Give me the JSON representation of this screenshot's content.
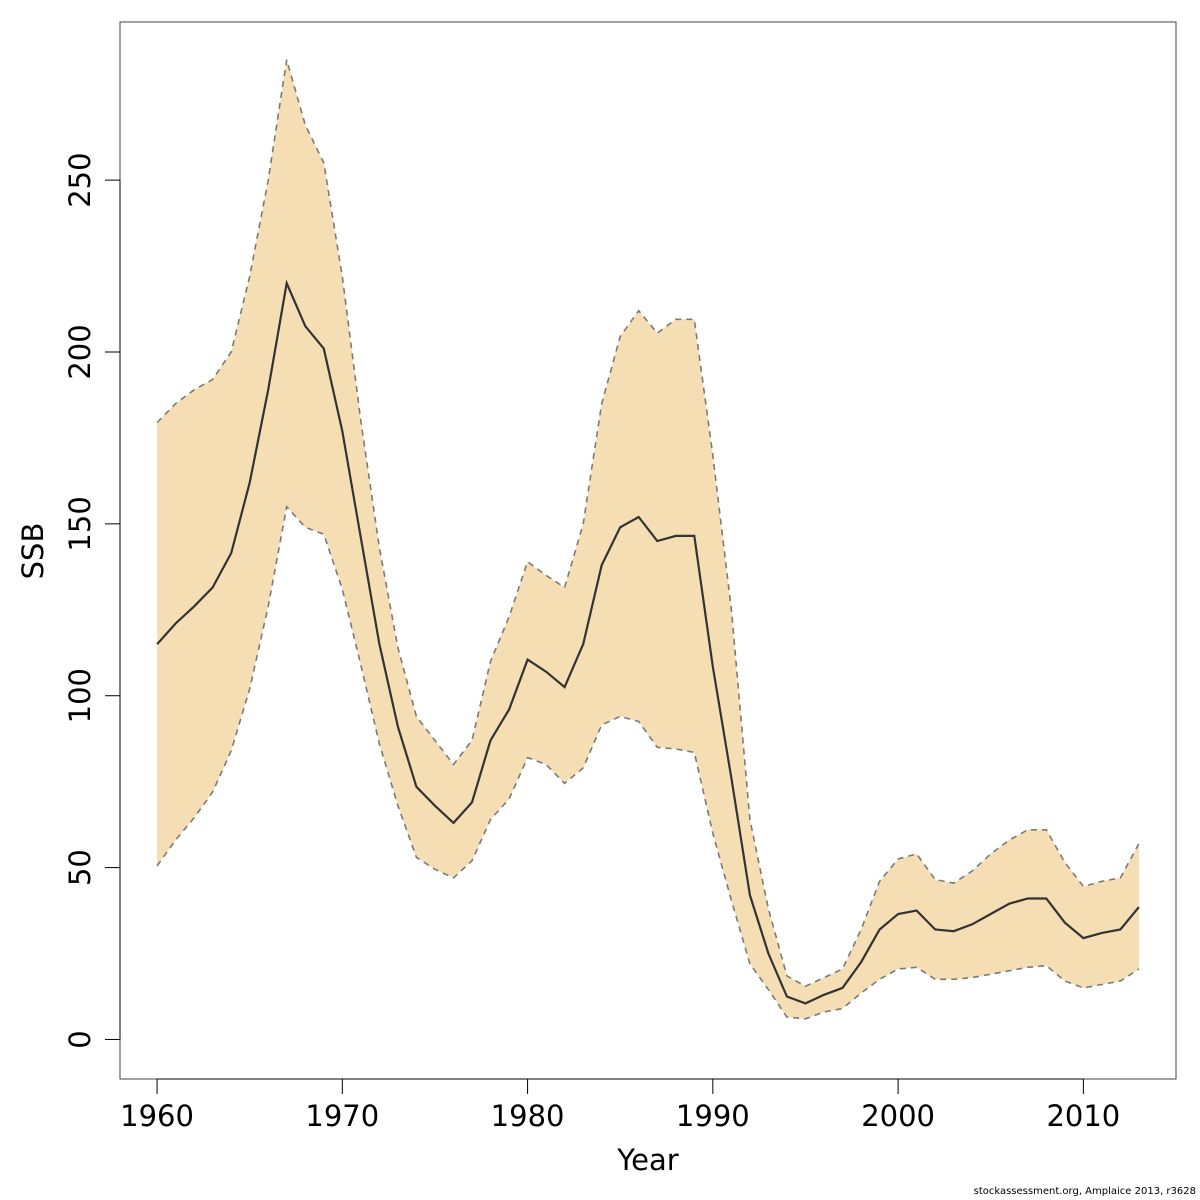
{
  "chart_data": {
    "type": "area",
    "title": "",
    "xlabel": "Year",
    "ylabel": "SSB",
    "xlim": [
      1958,
      2015
    ],
    "ylim": [
      -11.5,
      296
    ],
    "x_ticks": [
      1960,
      1970,
      1980,
      1990,
      2000,
      2010
    ],
    "y_ticks": [
      0,
      50,
      100,
      150,
      200,
      250
    ],
    "grid": false,
    "legend": "none",
    "x": [
      1960,
      1961,
      1962,
      1963,
      1964,
      1965,
      1966,
      1967,
      1968,
      1969,
      1970,
      1971,
      1972,
      1973,
      1974,
      1975,
      1976,
      1977,
      1978,
      1979,
      1980,
      1981,
      1982,
      1983,
      1984,
      1985,
      1986,
      1987,
      1988,
      1989,
      1990,
      1991,
      1992,
      1993,
      1994,
      1995,
      1996,
      1997,
      1998,
      1999,
      2000,
      2001,
      2002,
      2003,
      2004,
      2005,
      2006,
      2007,
      2008,
      2009,
      2010,
      2011,
      2012,
      2013
    ],
    "series": [
      {
        "role": "estimate",
        "values": [
          115,
          121,
          126,
          131.5,
          141.5,
          162,
          189,
          220,
          207.5,
          201,
          177,
          146,
          115,
          91,
          73.5,
          68,
          63,
          69,
          87,
          96,
          110.5,
          107,
          102.5,
          115,
          138,
          149,
          152,
          145,
          146.5,
          146.5,
          108.5,
          76,
          42,
          25,
          12.5,
          10.5,
          13,
          15,
          22.5,
          32,
          36.5,
          37.5,
          32,
          31.5,
          33.5,
          36.5,
          39.5,
          41,
          41,
          34,
          29.5,
          31,
          32,
          38.5
        ]
      },
      {
        "role": "upper",
        "values": [
          179.5,
          185,
          189,
          192,
          200,
          222,
          250,
          285,
          266,
          255,
          222,
          180,
          143,
          114,
          94,
          87,
          80,
          87,
          110,
          123,
          139,
          135,
          131.5,
          150,
          185,
          204.5,
          212,
          205.5,
          209.5,
          209.5,
          170,
          125,
          64,
          38,
          18.5,
          15.5,
          18,
          20.5,
          32,
          46,
          52.5,
          54,
          46.5,
          45.5,
          49,
          54,
          58,
          61,
          61,
          51.5,
          44.5,
          46,
          47,
          57
        ]
      },
      {
        "role": "lower",
        "values": [
          50.5,
          58,
          64.5,
          72,
          84,
          102,
          126,
          155,
          149,
          147,
          131,
          109,
          86,
          68,
          53,
          49.5,
          47,
          52,
          64,
          70,
          82,
          80,
          74.5,
          79,
          91.5,
          94,
          92.5,
          85,
          84.5,
          83.5,
          60,
          40.5,
          22,
          14.5,
          6.5,
          6,
          8,
          9,
          13.5,
          17.5,
          20.5,
          21,
          17.5,
          17.5,
          18,
          19,
          20,
          21,
          21.5,
          17,
          15,
          16,
          17,
          20.5
        ]
      }
    ],
    "colors": {
      "band_fill": "#f5deb3",
      "estimate_line": "#333333",
      "bound_line": "#7a7a7a",
      "frame": "#444444"
    }
  },
  "credit": "stockassessment.org, Amplaice  2013, r3628"
}
